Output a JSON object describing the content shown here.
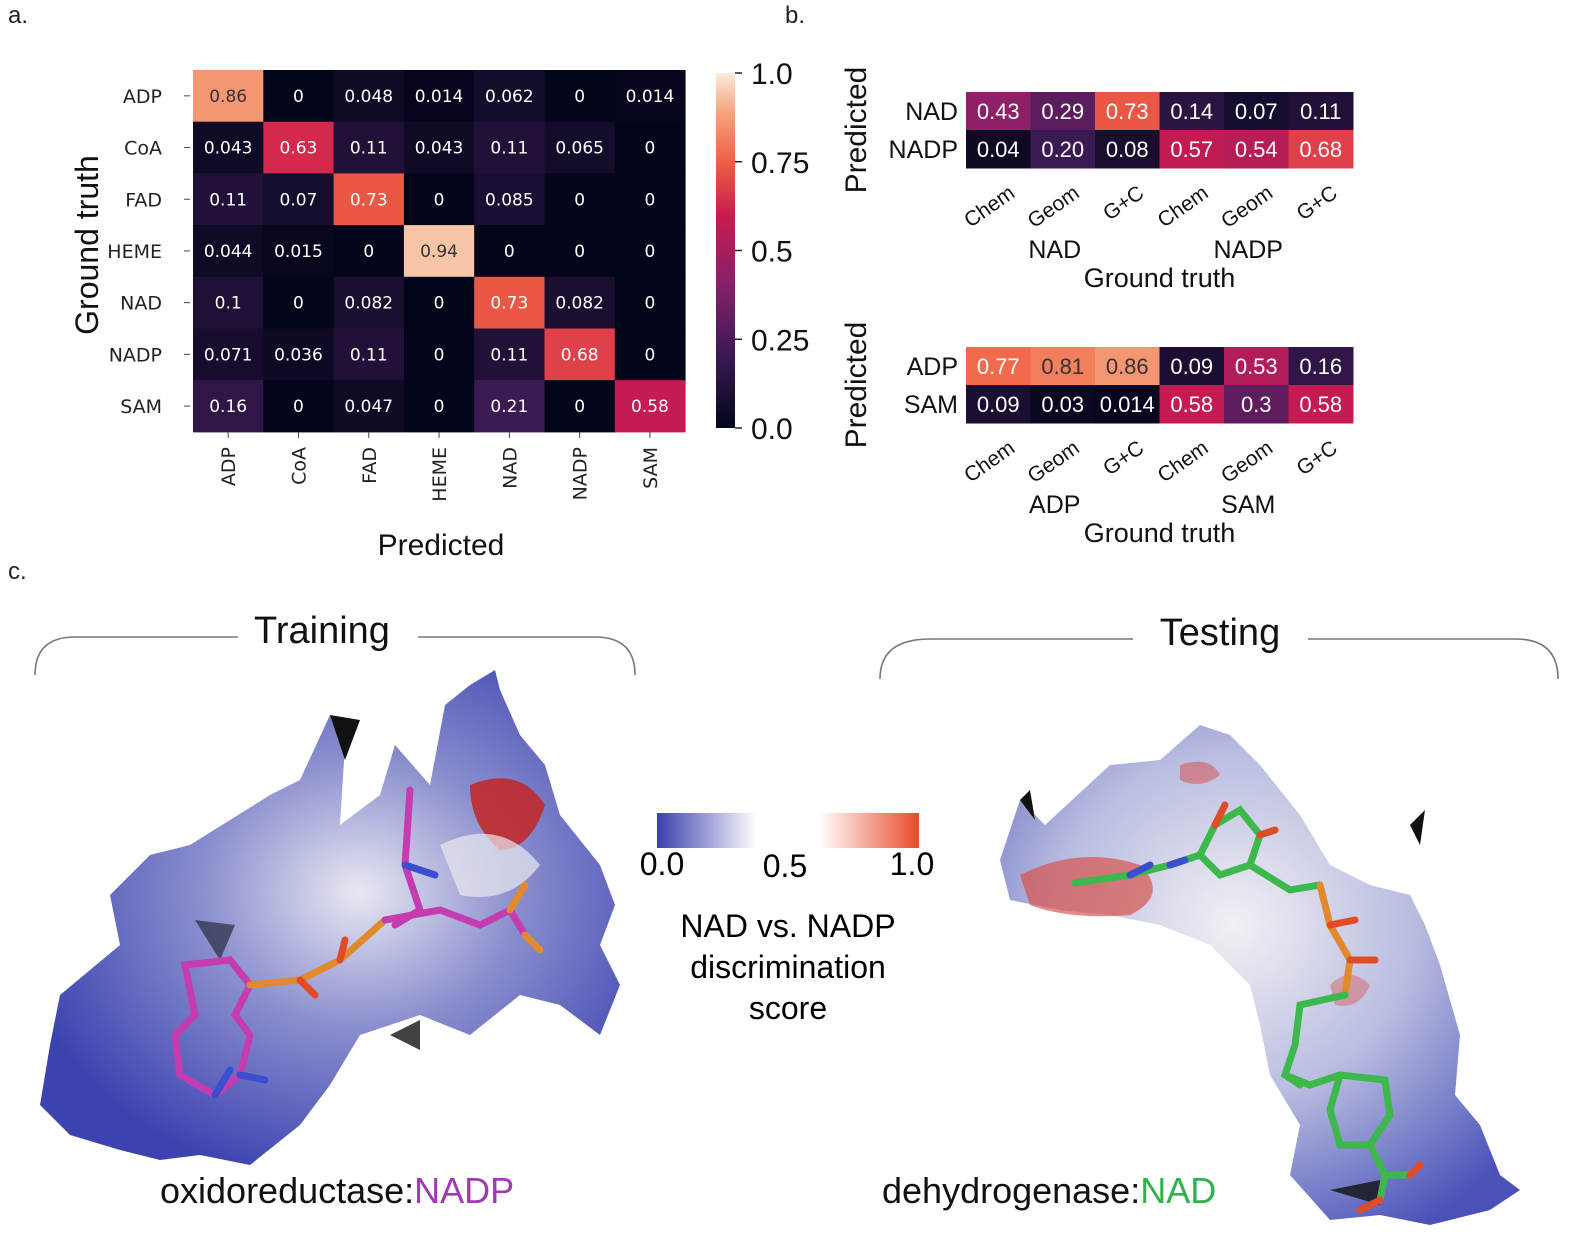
{
  "panels": {
    "a": "a.",
    "b": "b.",
    "c": "c."
  },
  "chart_data": [
    {
      "type": "heatmap",
      "id": "confusion-matrix",
      "rows": [
        "ADP",
        "CoA",
        "FAD",
        "HEME",
        "NAD",
        "NADP",
        "SAM"
      ],
      "cols": [
        "ADP",
        "CoA",
        "FAD",
        "HEME",
        "NAD",
        "NADP",
        "SAM"
      ],
      "values": [
        [
          0.86,
          0,
          0.048,
          0.014,
          0.062,
          0,
          0.014
        ],
        [
          0.043,
          0.63,
          0.11,
          0.043,
          0.11,
          0.065,
          0
        ],
        [
          0.11,
          0.07,
          0.73,
          0,
          0.085,
          0,
          0
        ],
        [
          0.044,
          0.015,
          0,
          0.94,
          0,
          0,
          0
        ],
        [
          0.1,
          0,
          0.082,
          0,
          0.73,
          0.082,
          0
        ],
        [
          0.071,
          0.036,
          0.11,
          0,
          0.11,
          0.68,
          0
        ],
        [
          0.16,
          0,
          0.047,
          0,
          0.21,
          0,
          0.58
        ]
      ],
      "labels": [
        [
          "0.86",
          "0",
          "0.048",
          "0.014",
          "0.062",
          "0",
          "0.014"
        ],
        [
          "0.043",
          "0.63",
          "0.11",
          "0.043",
          "0.11",
          "0.065",
          "0"
        ],
        [
          "0.11",
          "0.07",
          "0.73",
          "0",
          "0.085",
          "0",
          "0"
        ],
        [
          "0.044",
          "0.015",
          "0",
          "0.94",
          "0",
          "0",
          "0"
        ],
        [
          "0.1",
          "0",
          "0.082",
          "0",
          "0.73",
          "0.082",
          "0"
        ],
        [
          "0.071",
          "0.036",
          "0.11",
          "0",
          "0.11",
          "0.68",
          "0"
        ],
        [
          "0.16",
          "0",
          "0.047",
          "0",
          "0.21",
          "0",
          "0.58"
        ]
      ],
      "xlabel": "Predicted",
      "ylabel": "Ground truth",
      "colorbar": {
        "ticks": [
          1.0,
          0.75,
          0.5,
          0.25,
          0.0
        ],
        "tick_labels": [
          "1.0",
          "0.75",
          "0.5",
          "0.25",
          "0.0"
        ]
      }
    },
    {
      "type": "heatmap",
      "id": "nad-nadp",
      "rows": [
        "NAD",
        "NADP"
      ],
      "cols": [
        "Chem",
        "Geom",
        "G+C",
        "Chem",
        "Geom",
        "G+C"
      ],
      "groups": [
        "NAD",
        "NADP"
      ],
      "values": [
        [
          0.43,
          0.29,
          0.73,
          0.14,
          0.07,
          0.11
        ],
        [
          0.04,
          0.2,
          0.08,
          0.57,
          0.54,
          0.68
        ]
      ],
      "labels": [
        [
          "0.43",
          "0.29",
          "0.73",
          "0.14",
          "0.07",
          "0.11"
        ],
        [
          "0.04",
          "0.20",
          "0.08",
          "0.57",
          "0.54",
          "0.68"
        ]
      ],
      "xlabel": "Ground truth",
      "ylabel": "Predicted"
    },
    {
      "type": "heatmap",
      "id": "adp-sam",
      "rows": [
        "ADP",
        "SAM"
      ],
      "cols": [
        "Chem",
        "Geom",
        "G+C",
        "Chem",
        "Geom",
        "G+C"
      ],
      "groups": [
        "ADP",
        "SAM"
      ],
      "values": [
        [
          0.77,
          0.81,
          0.86,
          0.09,
          0.53,
          0.16
        ],
        [
          0.09,
          0.03,
          0.014,
          0.58,
          0.3,
          0.58
        ]
      ],
      "labels": [
        [
          "0.77",
          "0.81",
          "0.86",
          "0.09",
          "0.53",
          "0.16"
        ],
        [
          "0.09",
          "0.03",
          "0.014",
          "0.58",
          "0.3",
          "0.58"
        ]
      ],
      "xlabel": "Ground truth",
      "ylabel": "Predicted"
    }
  ],
  "panel_c": {
    "training_label": "Training",
    "testing_label": "Testing",
    "scale_ticks": [
      "0.0",
      "0.5",
      "1.0"
    ],
    "scale_title": [
      "NAD vs. NADP",
      "discrimination",
      "score"
    ],
    "left_caption": {
      "prefix": "oxidoreductase:",
      "ligand": "NADP",
      "ligand_color": "#a03ab4"
    },
    "right_caption": {
      "prefix": "dehydrogenase:",
      "ligand": "NAD",
      "ligand_color": "#2db34a"
    }
  }
}
